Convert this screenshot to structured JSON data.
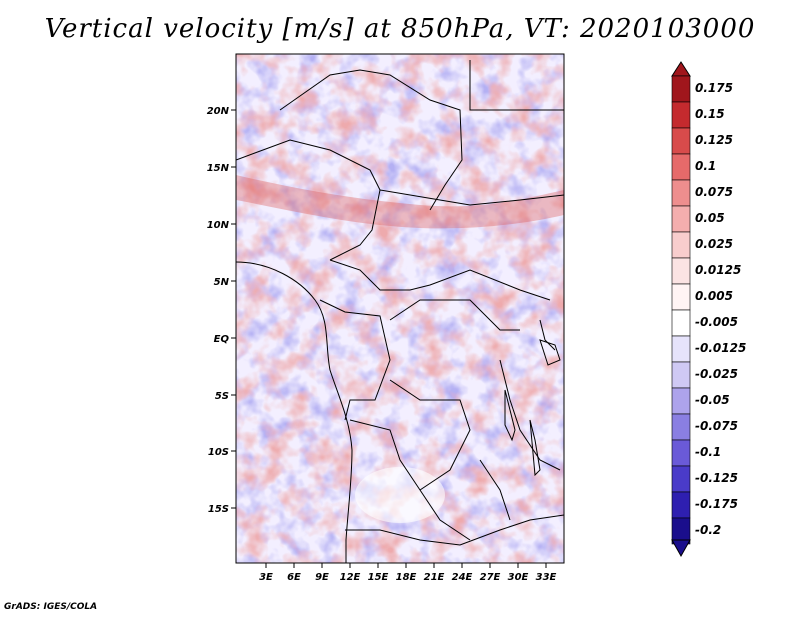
{
  "title": "Vertical velocity [m/s] at 850hPa, VT: 2020103000",
  "footer": "GrADS: IGES/COLA",
  "map": {
    "lat_labels": [
      "20N",
      "15N",
      "10N",
      "5N",
      "EQ",
      "5S",
      "10S",
      "15S"
    ],
    "lon_labels": [
      "3E",
      "6E",
      "9E",
      "12E",
      "15E",
      "18E",
      "21E",
      "24E",
      "27E",
      "30E",
      "33E"
    ]
  },
  "colorbar": {
    "labels": [
      "0.175",
      "0.15",
      "0.125",
      "0.1",
      "0.075",
      "0.05",
      "0.025",
      "0.0125",
      "0.005",
      "-0.005",
      "-0.0125",
      "-0.025",
      "-0.05",
      "-0.075",
      "-0.1",
      "-0.125",
      "-0.175",
      "-0.2"
    ],
    "colors": [
      "#a0161c",
      "#c42a2e",
      "#d84b4b",
      "#e66a6a",
      "#ee8e8e",
      "#f4aeae",
      "#f8cdcd",
      "#fbe3e3",
      "#fff4f4",
      "#ffffff",
      "#e6e3fb",
      "#cfc9f4",
      "#ada3ec",
      "#8a7fe2",
      "#6a5ad8",
      "#4a3bc9",
      "#2e1fb0",
      "#1a0e8c"
    ],
    "top_color": "#a0161c",
    "bottom_color": "#1a0e8c"
  }
}
